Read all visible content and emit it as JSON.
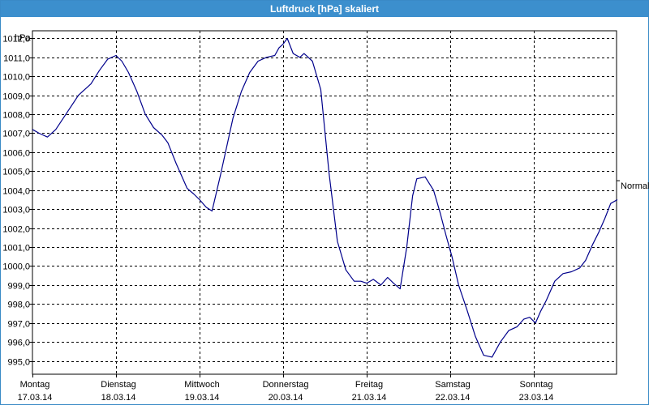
{
  "window": {
    "title": "Luftdruck [hPa] skaliert"
  },
  "chart_data": {
    "type": "line",
    "title": "Luftdruck [hPa] skaliert",
    "ylabel": "hPa",
    "ylim": [
      994.3,
      1012.4
    ],
    "yticks": [
      995,
      996,
      997,
      998,
      999,
      1000,
      1001,
      1002,
      1003,
      1004,
      1005,
      1006,
      1007,
      1008,
      1009,
      1010,
      1011,
      1012
    ],
    "ytick_labels": [
      "995,0",
      "996,0",
      "997,0",
      "998,0",
      "999,0",
      "1000,0",
      "1001,0",
      "1002,0",
      "1003,0",
      "1004,0",
      "1005,0",
      "1006,0",
      "1007,0",
      "1008,0",
      "1009,0",
      "1010,0",
      "1011,0",
      "1012,0"
    ],
    "xlim": [
      0,
      7
    ],
    "day_labels": [
      {
        "day": "Montag",
        "date": "17.03.14"
      },
      {
        "day": "Dienstag",
        "date": "18.03.14"
      },
      {
        "day": "Mittwoch",
        "date": "19.03.14"
      },
      {
        "day": "Donnerstag",
        "date": "20.03.14"
      },
      {
        "day": "Freitag",
        "date": "21.03.14"
      },
      {
        "day": "Samstag",
        "date": "22.03.14"
      },
      {
        "day": "Sonntag",
        "date": "23.03.14"
      }
    ],
    "reference_line": {
      "label": "Normal",
      "value": 1004.5
    },
    "grid": true,
    "line_color": "#00008b",
    "series": [
      {
        "x": [
          0,
          0.08,
          0.18,
          0.28,
          0.4,
          0.55,
          0.7,
          0.8,
          0.9,
          1.0,
          1.07,
          1.15,
          1.25,
          1.35,
          1.45,
          1.55,
          1.62,
          1.72,
          1.85,
          1.93,
          2.0,
          2.08,
          2.15,
          2.25,
          2.4,
          2.5,
          2.6,
          2.7,
          2.8,
          2.9,
          2.95,
          3.0,
          3.05,
          3.12,
          3.2,
          3.25,
          3.35,
          3.45,
          3.55,
          3.65,
          3.75,
          3.85,
          3.93,
          4.0,
          4.08,
          4.17,
          4.25,
          4.32,
          4.4,
          4.48,
          4.55,
          4.6,
          4.7,
          4.8,
          4.88,
          4.95,
          5.02,
          5.1,
          5.2,
          5.3,
          5.4,
          5.5,
          5.6,
          5.7,
          5.8,
          5.88,
          5.95,
          6.02,
          6.08,
          6.15,
          6.25,
          6.35,
          6.45,
          6.55,
          6.62,
          6.7,
          6.78,
          6.85,
          6.92,
          7.0
        ],
        "y": [
          1007.2,
          1007.0,
          1006.8,
          1007.2,
          1008.0,
          1009.0,
          1009.6,
          1010.3,
          1010.9,
          1011.1,
          1010.8,
          1010.2,
          1009.2,
          1008.0,
          1007.3,
          1006.9,
          1006.5,
          1005.4,
          1004.1,
          1003.8,
          1003.5,
          1003.1,
          1002.9,
          1004.8,
          1007.8,
          1009.2,
          1010.2,
          1010.8,
          1011.0,
          1011.1,
          1011.5,
          1011.7,
          1012.0,
          1011.2,
          1011.0,
          1011.2,
          1010.8,
          1009.3,
          1004.9,
          1001.3,
          999.8,
          999.2,
          999.2,
          999.1,
          999.3,
          999.0,
          999.4,
          999.1,
          998.8,
          1001.0,
          1003.7,
          1004.6,
          1004.7,
          1004.0,
          1002.8,
          1001.6,
          1000.5,
          999.0,
          997.7,
          996.3,
          995.3,
          995.2,
          996.0,
          996.6,
          996.8,
          997.2,
          997.3,
          997.0,
          997.6,
          998.2,
          999.2,
          999.6,
          999.7,
          999.9,
          1000.3,
          1001.1,
          1001.8,
          1002.5,
          1003.3,
          1003.5
        ]
      }
    ]
  }
}
